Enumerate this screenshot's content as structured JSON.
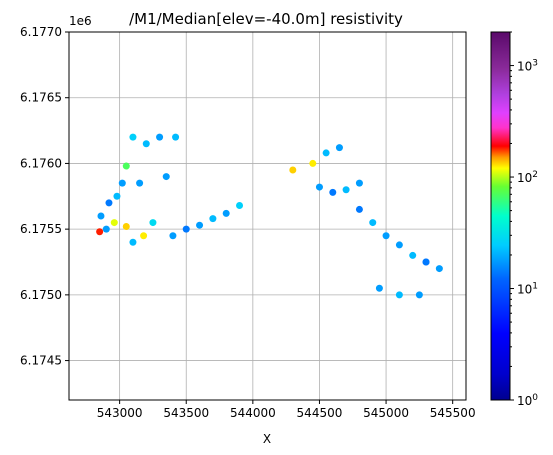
{
  "chart_data": {
    "type": "scatter",
    "title": "/M1/Median[elev=-40.0m] resistivity",
    "xlabel": "X",
    "ylabel": "",
    "y_offset_label": "1e6",
    "xlim": [
      542620,
      545600
    ],
    "ylim": [
      6.1742,
      6.177
    ],
    "xticks": [
      543000,
      543500,
      544000,
      544500,
      545000,
      545500
    ],
    "xtick_labels": [
      "543000",
      "543500",
      "544000",
      "544500",
      "545000",
      "545500"
    ],
    "yticks": [
      6.1745,
      6.175,
      6.1755,
      6.176,
      6.1765,
      6.177
    ],
    "ytick_labels": [
      "6.1745",
      "6.1750",
      "6.1755",
      "6.1760",
      "6.1765",
      "6.1770"
    ],
    "grid": true,
    "colorbar": {
      "scale": "log",
      "range": [
        1,
        2000
      ],
      "colormap": "jet-like rainbow",
      "ticks": [
        1,
        10,
        100,
        1000
      ],
      "tick_labels": [
        "10^0",
        "10^1",
        "10^2",
        "10^3"
      ],
      "colors": [
        "#00008f",
        "#0000ff",
        "#0066ff",
        "#00ccff",
        "#00ffcc",
        "#66ff33",
        "#ffff00",
        "#ff9900",
        "#ff0000",
        "#ff33cc",
        "#cc33ff",
        "#7a1a8a",
        "#5a0a6a"
      ]
    },
    "series": [
      {
        "label_hint": "west-north cluster",
        "x": [
          543100,
          543200,
          543300,
          543420,
          543150,
          543350,
          543050
        ],
        "y": [
          6.1762,
          6.17615,
          6.1762,
          6.1762,
          6.17585,
          6.1759,
          6.17598
        ],
        "rho": [
          7,
          6,
          5,
          6,
          5,
          5,
          20
        ]
      },
      {
        "label_hint": "west cluster",
        "x": [
          542860,
          542920,
          542980,
          543020,
          542900,
          542960,
          543050,
          542850
        ],
        "y": [
          6.1756,
          6.1757,
          6.17575,
          6.17585,
          6.1755,
          6.17555,
          6.17552,
          6.17548
        ],
        "rho": [
          5,
          4,
          6,
          5,
          5,
          40,
          60,
          140
        ]
      },
      {
        "label_hint": "west low",
        "x": [
          543100,
          543180,
          543250
        ],
        "y": [
          6.1754,
          6.17545,
          6.17555
        ],
        "rho": [
          6,
          50,
          8
        ]
      },
      {
        "label_hint": "central strip",
        "x": [
          543400,
          543500,
          543600,
          543700,
          543800,
          543900
        ],
        "y": [
          6.17545,
          6.1755,
          6.17553,
          6.17558,
          6.17562,
          6.17568
        ],
        "rho": [
          5,
          4,
          5,
          6,
          5,
          7
        ]
      },
      {
        "label_hint": "east-north cluster",
        "x": [
          544300,
          544450,
          544550,
          544650
        ],
        "y": [
          6.17595,
          6.176,
          6.17608,
          6.17612
        ],
        "rho": [
          60,
          50,
          6,
          5
        ]
      },
      {
        "label_hint": "east-middle cluster",
        "x": [
          544500,
          544600,
          544700,
          544800
        ],
        "y": [
          6.17582,
          6.17578,
          6.1758,
          6.17585
        ],
        "rho": [
          5,
          4,
          6,
          5
        ]
      },
      {
        "label_hint": "east-south cluster",
        "x": [
          544800,
          544900,
          545000,
          545100,
          545200,
          545300,
          545400
        ],
        "y": [
          6.17565,
          6.17555,
          6.17545,
          6.17538,
          6.1753,
          6.17525,
          6.1752
        ],
        "rho": [
          4,
          6,
          5,
          5,
          6,
          4,
          5
        ]
      },
      {
        "label_hint": "east-bottom",
        "x": [
          544950,
          545100,
          545250,
          545300
        ],
        "y": [
          6.17505,
          6.175,
          6.175,
          6.17525
        ],
        "rho": [
          5,
          6,
          5,
          4
        ]
      }
    ]
  }
}
